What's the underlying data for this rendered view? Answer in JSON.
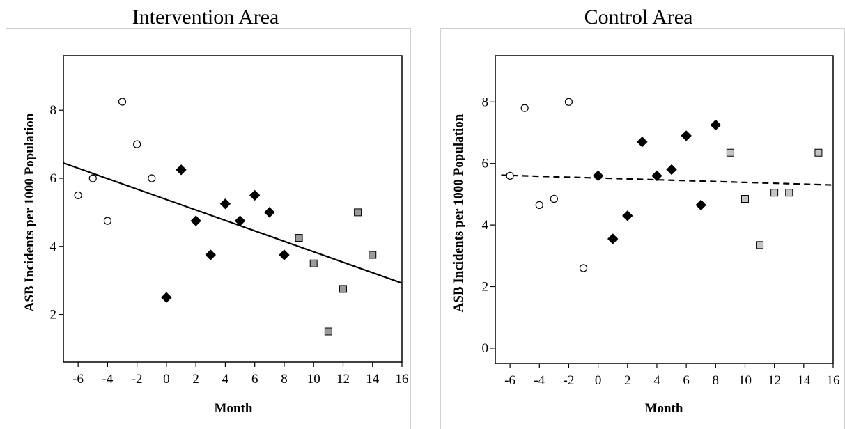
{
  "chart_data": [
    {
      "type": "scatter",
      "title": "Intervention Area",
      "xlabel": "Month",
      "ylabel": "ASB Incidents per 1000 Population",
      "xlim": [
        -7,
        16
      ],
      "ylim": [
        0.6,
        9.6
      ],
      "xticks": [
        -6,
        -4,
        -2,
        0,
        2,
        4,
        6,
        8,
        10,
        12,
        14,
        16
      ],
      "xtick_labels": [
        "-6",
        "-4",
        "-2",
        "0",
        "2",
        "4",
        "6",
        "8",
        "10",
        "12",
        "14",
        "16"
      ],
      "yticks": [
        2,
        4,
        6,
        8
      ],
      "ytick_labels": [
        "2",
        "4",
        "6",
        "8"
      ],
      "grid": false,
      "series": [
        {
          "marker": "open-circle",
          "points": [
            [
              -6,
              5.5
            ],
            [
              -5,
              6.0
            ],
            [
              -4,
              4.75
            ],
            [
              -3,
              8.25
            ],
            [
              -2,
              7.0
            ],
            [
              -1,
              6.0
            ]
          ]
        },
        {
          "marker": "filled-diamond",
          "points": [
            [
              0,
              2.5
            ],
            [
              1,
              6.25
            ],
            [
              2,
              4.75
            ],
            [
              3,
              3.75
            ],
            [
              4,
              5.25
            ],
            [
              5,
              4.75
            ],
            [
              6,
              5.5
            ],
            [
              7,
              5.0
            ],
            [
              8,
              3.75
            ]
          ]
        },
        {
          "marker": "gray-square",
          "points": [
            [
              9,
              4.25
            ],
            [
              10,
              3.5
            ],
            [
              11,
              1.5
            ],
            [
              12,
              2.75
            ],
            [
              13,
              5.0
            ],
            [
              14,
              3.75
            ]
          ]
        }
      ],
      "fit_line": {
        "style": "solid",
        "points": [
          [
            -7,
            6.45
          ],
          [
            16,
            2.92
          ]
        ]
      }
    },
    {
      "type": "scatter",
      "title": "Control Area",
      "xlabel": "Month",
      "ylabel": "ASB Incidents per 1000 Population",
      "xlim": [
        -7,
        16
      ],
      "ylim": [
        -0.5,
        9.5
      ],
      "xticks": [
        -6,
        -4,
        -2,
        0,
        2,
        4,
        6,
        8,
        10,
        12,
        14,
        16
      ],
      "xtick_labels": [
        "-6",
        "-4",
        "-2",
        "0",
        "2",
        "4",
        "6",
        "8",
        "10",
        "12",
        "14",
        "16"
      ],
      "yticks": [
        0,
        2,
        4,
        6,
        8
      ],
      "ytick_labels": [
        "0",
        "2",
        "4",
        "6",
        "8"
      ],
      "grid": false,
      "series": [
        {
          "marker": "open-circle",
          "points": [
            [
              -6,
              5.6
            ],
            [
              -5,
              7.8
            ],
            [
              -4,
              4.65
            ],
            [
              -3,
              4.85
            ],
            [
              -2,
              8.0
            ],
            [
              -1,
              2.6
            ]
          ]
        },
        {
          "marker": "filled-diamond",
          "points": [
            [
              0,
              5.6
            ],
            [
              1,
              3.55
            ],
            [
              2,
              4.3
            ],
            [
              3,
              6.7
            ],
            [
              4,
              5.6
            ],
            [
              5,
              5.8
            ],
            [
              6,
              6.9
            ],
            [
              7,
              4.65
            ],
            [
              8,
              7.25
            ]
          ]
        },
        {
          "marker": "gray-square",
          "points": [
            [
              9,
              6.35
            ],
            [
              10,
              4.85
            ],
            [
              11,
              3.35
            ],
            [
              12,
              5.05
            ],
            [
              13,
              5.05
            ],
            [
              15,
              6.35
            ]
          ]
        }
      ],
      "fit_line": {
        "style": "dashed",
        "points": [
          [
            -6.6,
            5.62
          ],
          [
            16,
            5.3
          ]
        ]
      }
    }
  ]
}
